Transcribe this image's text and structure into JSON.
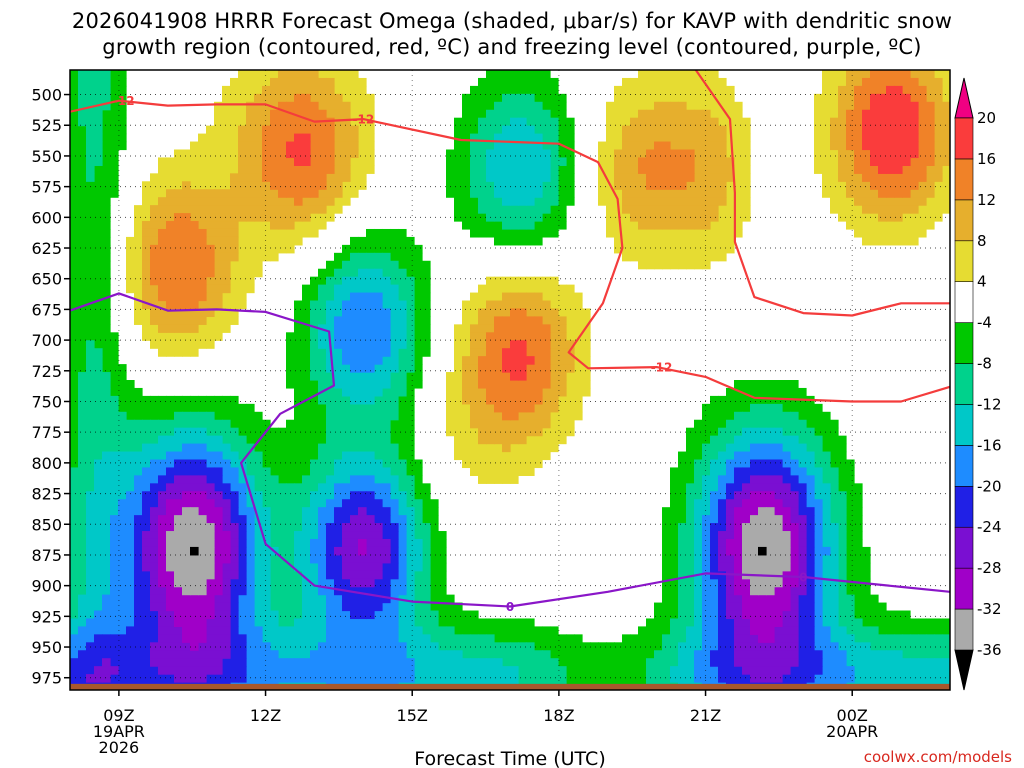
{
  "chart_data": {
    "type": "heatmap",
    "title_line1": "2026041908 HRRR Forecast Omega (shaded, μbar/s) for KAVP with dendritic snow",
    "title_line2": "growth region (contoured, red, ºC) and freezing level (contoured, purple, ºC)",
    "xlabel": "Forecast Time (UTC)",
    "x_range_hours": [
      8,
      26
    ],
    "x_ticks": [
      {
        "hour": 9,
        "label": "09Z",
        "sub1": "19APR",
        "sub2": "2026"
      },
      {
        "hour": 12,
        "label": "12Z",
        "sub1": "",
        "sub2": ""
      },
      {
        "hour": 15,
        "label": "15Z",
        "sub1": "",
        "sub2": ""
      },
      {
        "hour": 18,
        "label": "18Z",
        "sub1": "",
        "sub2": ""
      },
      {
        "hour": 21,
        "label": "21Z",
        "sub1": "",
        "sub2": ""
      },
      {
        "hour": 24,
        "label": "00Z",
        "sub1": "20APR",
        "sub2": ""
      }
    ],
    "y_range_mb": [
      480,
      985
    ],
    "y_ticks": [
      500,
      525,
      550,
      575,
      600,
      625,
      650,
      675,
      700,
      725,
      750,
      775,
      800,
      825,
      850,
      875,
      900,
      925,
      950,
      975
    ],
    "colorbar": {
      "levels": [
        -36,
        -32,
        -28,
        -24,
        -20,
        -16,
        -12,
        -8,
        -4,
        4,
        8,
        12,
        16,
        20
      ],
      "labels": [
        "-36",
        "-32",
        "-28",
        "-24",
        "-20",
        "-16",
        "-12",
        "-8",
        "-4",
        "4",
        "8",
        "12",
        "16",
        "20"
      ],
      "colors": [
        "#000000",
        "#aaaaaa",
        "#a000c8",
        "#7a0fd2",
        "#2020e6",
        "#1e8cff",
        "#00c8c8",
        "#00d28c",
        "#00c800",
        "#ffffff",
        "#e6dc32",
        "#e6af2d",
        "#f08228",
        "#fa3c3c",
        "#f00082"
      ]
    },
    "omega_features": [
      {
        "hour": 10.2,
        "mb": 640,
        "value": 16
      },
      {
        "hour": 10.5,
        "mb": 870,
        "value": -36
      },
      {
        "hour": 12.8,
        "mb": 560,
        "value": 12
      },
      {
        "hour": 14.0,
        "mb": 690,
        "value": -20
      },
      {
        "hour": 14.0,
        "mb": 870,
        "value": -28
      },
      {
        "hour": 16.2,
        "mb": 780,
        "value": 4
      },
      {
        "hour": 17.2,
        "mb": 560,
        "value": -16
      },
      {
        "hour": 17.2,
        "mb": 710,
        "value": 16
      },
      {
        "hour": 19.8,
        "mb": 560,
        "value": 12
      },
      {
        "hour": 22.2,
        "mb": 870,
        "value": -36
      },
      {
        "hour": 24.8,
        "mb": 530,
        "value": 20
      }
    ],
    "dendritic_isotherm_label": "-12",
    "dendritic_isotherm_-12C": [
      {
        "hour": 8.0,
        "mb": 514
      },
      {
        "hour": 9.0,
        "mb": 505
      },
      {
        "hour": 10.0,
        "mb": 509
      },
      {
        "hour": 11.0,
        "mb": 508
      },
      {
        "hour": 12.0,
        "mb": 508
      },
      {
        "hour": 13.0,
        "mb": 522
      },
      {
        "hour": 14.0,
        "mb": 520
      },
      {
        "hour": 16.0,
        "mb": 537
      },
      {
        "hour": 18.0,
        "mb": 540
      },
      {
        "hour": 18.8,
        "mb": 555
      },
      {
        "hour": 19.2,
        "mb": 585
      },
      {
        "hour": 19.3,
        "mb": 625
      },
      {
        "hour": 18.9,
        "mb": 670
      },
      {
        "hour": 18.2,
        "mb": 710
      },
      {
        "hour": 18.6,
        "mb": 723
      },
      {
        "hour": 20.0,
        "mb": 722
      },
      {
        "hour": 21.0,
        "mb": 730
      },
      {
        "hour": 22.0,
        "mb": 747
      },
      {
        "hour": 24.0,
        "mb": 750
      },
      {
        "hour": 25.0,
        "mb": 750
      },
      {
        "hour": 26.0,
        "mb": 738
      }
    ],
    "dendritic_isotherm_upper": [
      {
        "hour": 20.8,
        "mb": 480
      },
      {
        "hour": 21.5,
        "mb": 520
      },
      {
        "hour": 21.6,
        "mb": 580
      },
      {
        "hour": 21.6,
        "mb": 620
      },
      {
        "hour": 22.0,
        "mb": 665
      },
      {
        "hour": 23.0,
        "mb": 678
      },
      {
        "hour": 24.0,
        "mb": 680
      },
      {
        "hour": 25.0,
        "mb": 670
      },
      {
        "hour": 26.0,
        "mb": 670
      }
    ],
    "freezing_level_label": "0",
    "freezing_level_0C": [
      {
        "hour": 8.0,
        "mb": 676
      },
      {
        "hour": 9.0,
        "mb": 662
      },
      {
        "hour": 10.0,
        "mb": 676
      },
      {
        "hour": 11.0,
        "mb": 675
      },
      {
        "hour": 12.0,
        "mb": 677
      },
      {
        "hour": 13.3,
        "mb": 693
      },
      {
        "hour": 13.4,
        "mb": 737
      },
      {
        "hour": 12.3,
        "mb": 760
      },
      {
        "hour": 11.5,
        "mb": 800
      },
      {
        "hour": 12.0,
        "mb": 866
      },
      {
        "hour": 13.0,
        "mb": 900
      },
      {
        "hour": 15.0,
        "mb": 913
      },
      {
        "hour": 17.0,
        "mb": 917
      },
      {
        "hour": 19.0,
        "mb": 905
      },
      {
        "hour": 21.0,
        "mb": 890
      },
      {
        "hour": 23.0,
        "mb": 893
      },
      {
        "hour": 25.0,
        "mb": 901
      },
      {
        "hour": 26.0,
        "mb": 905
      }
    ]
  },
  "credit": "coolwx.com/models"
}
